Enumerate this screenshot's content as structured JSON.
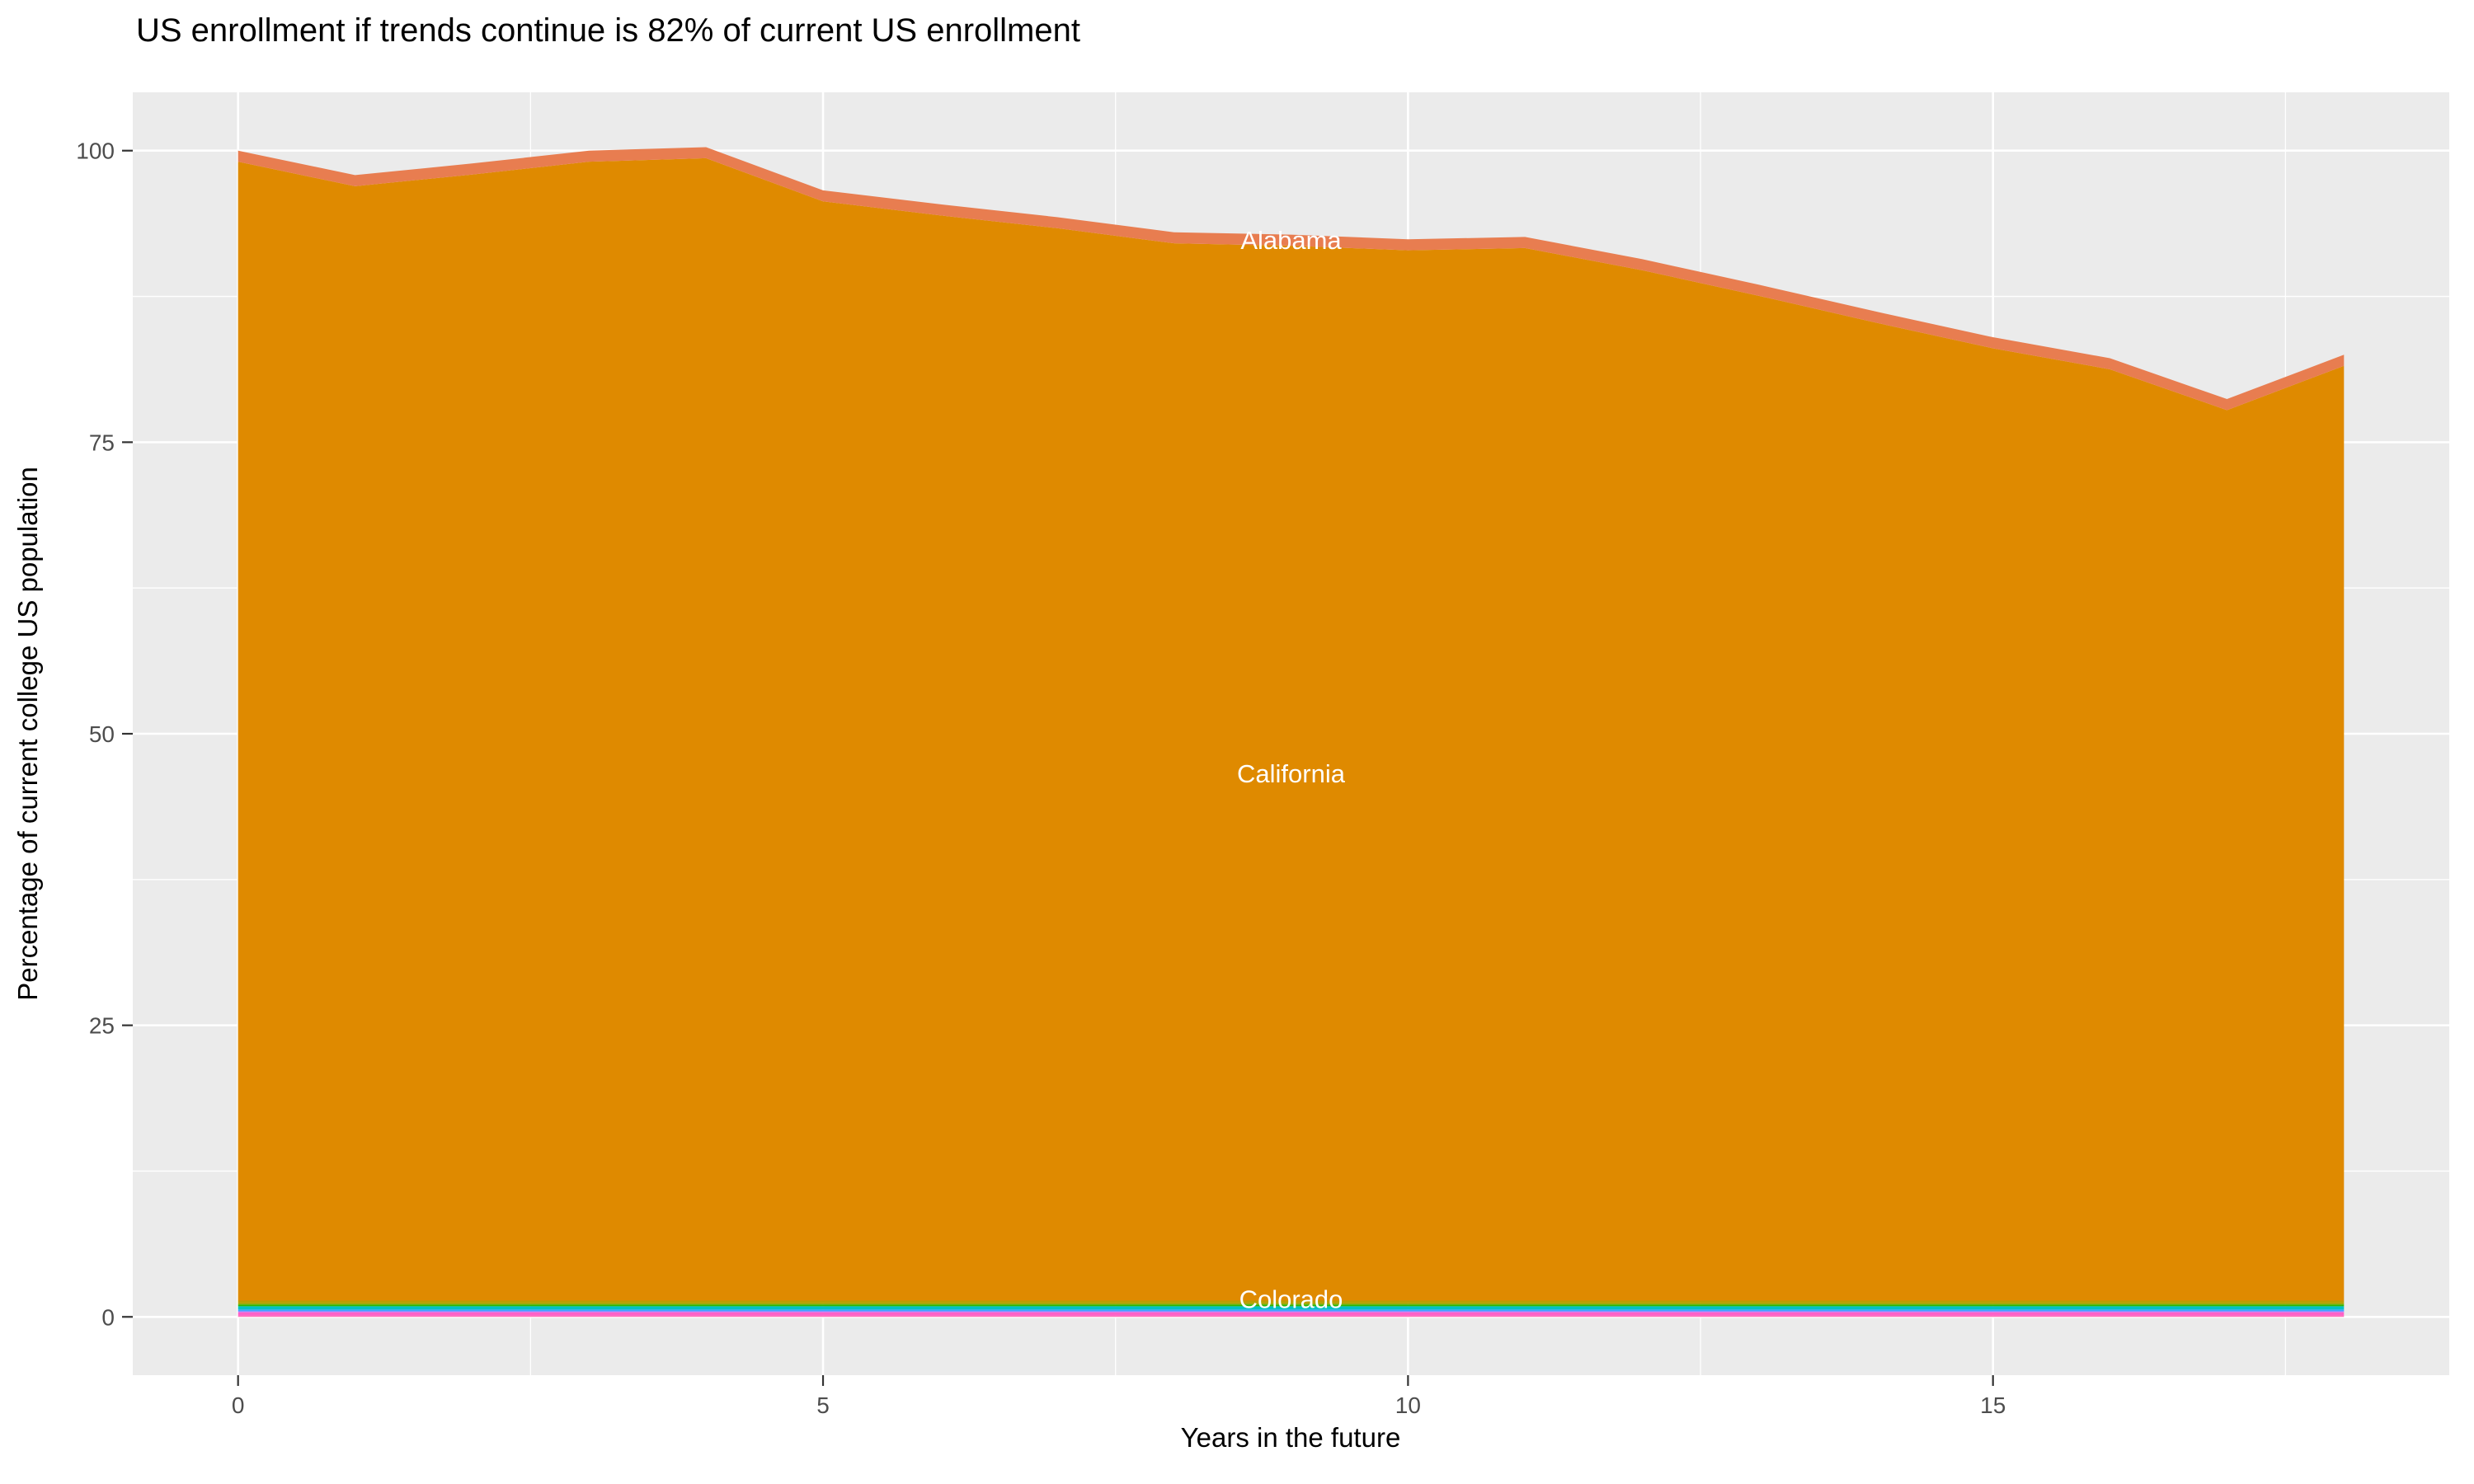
{
  "title": "US enrollment if trends continue is 82% of current US enrollment",
  "axes": {
    "x_label": "Years in the future",
    "y_label": "Percentage of current college US population",
    "x_tick_labels": [
      "0",
      "5",
      "10",
      "15"
    ],
    "y_tick_labels": [
      "0",
      "25",
      "50",
      "75",
      "100"
    ]
  },
  "colors": {
    "panel_background": "#EBEBEB",
    "gridline": "#FFFFFF",
    "tick_mark": "#333333",
    "tick_text": "#4D4D4D",
    "alabama_band": "#E87D50",
    "california_area": "#DF8A00",
    "colorado_band": "#BD9C00",
    "label_text": "#FFFFFF"
  },
  "chart_data": {
    "type": "area",
    "stacked": true,
    "title": "US enrollment if trends continue is 82% of current US enrollment",
    "xlabel": "Years in the future",
    "ylabel": "Percentage of current college US population",
    "x_range": [
      0,
      18
    ],
    "y_range": [
      0,
      100
    ],
    "x_major_ticks": [
      0,
      5,
      10,
      15
    ],
    "x_minor_ticks": [
      2.5,
      7.5,
      12.5,
      17.5
    ],
    "y_major_ticks": [
      0,
      25,
      50,
      75,
      100
    ],
    "y_minor_ticks": [
      12.5,
      37.5,
      62.5,
      87.5
    ],
    "grid": "white major and minor gridlines on gray panel",
    "legend_position": "none",
    "x": [
      0,
      1,
      2,
      3,
      4,
      5,
      6,
      7,
      8,
      9,
      10,
      11,
      12,
      13,
      14,
      15,
      16,
      17,
      18
    ],
    "stack_total": [
      100,
      97.9,
      98.9,
      100.0,
      100.3,
      96.6,
      95.4,
      94.3,
      93.0,
      92.8,
      92.4,
      92.6,
      90.7,
      88.5,
      86.2,
      84.0,
      82.2,
      78.7,
      82.5
    ],
    "series": [
      {
        "name": "unlabeled-band-pink",
        "color": "#FF6EB4",
        "band": 0.1
      },
      {
        "name": "unlabeled-band-magenta",
        "color": "#FF61C7",
        "band": 0.3
      },
      {
        "name": "unlabeled-band-lavender",
        "color": "#BC81FF",
        "band": 0.08
      },
      {
        "name": "unlabeled-band-blue",
        "color": "#3FA4FF",
        "band": 0.15
      },
      {
        "name": "unlabeled-band-teal",
        "color": "#00C1C5",
        "band": 0.28
      },
      {
        "name": "unlabeled-band-green",
        "color": "#2BB600",
        "band": 0.15
      },
      {
        "name": "unlabeled-band-yellowgreen",
        "color": "#96A900",
        "band": 0.12
      },
      {
        "name": "Colorado",
        "color": "#BD9C00",
        "band": 0.22
      },
      {
        "name": "California",
        "color": "#DF8A00",
        "values": [
          97.65,
          95.55,
          96.55,
          97.65,
          97.95,
          94.25,
          93.05,
          91.95,
          90.65,
          90.45,
          90.05,
          90.25,
          88.35,
          86.15,
          83.85,
          81.65,
          79.85,
          76.35,
          80.15
        ]
      },
      {
        "name": "Alabama",
        "color": "#E87D50",
        "band": 0.95
      }
    ],
    "labels": [
      {
        "text": "Alabama",
        "x": 9,
        "y": 92.35
      },
      {
        "text": "California",
        "x": 9,
        "y": 46.6
      },
      {
        "text": "Colorado",
        "x": 9,
        "y": 1.55
      }
    ]
  }
}
